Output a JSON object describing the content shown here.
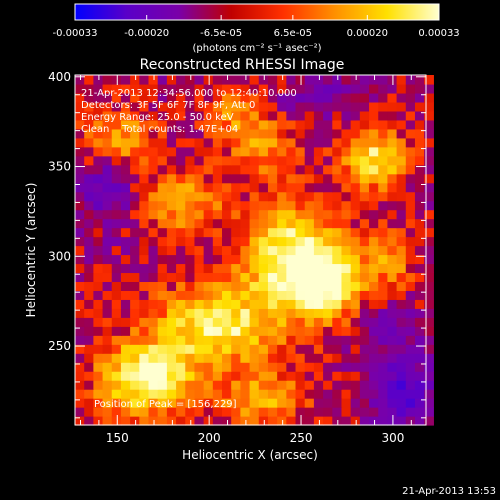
{
  "colorbar": {
    "ticks": [
      "-0.00033",
      "-0.00020",
      "-6.5e-05",
      "6.5e-05",
      "0.00020",
      "0.00033"
    ],
    "tick_values": [
      -0.00033,
      -0.0002,
      -6.5e-05,
      6.5e-05,
      0.0002,
      0.00033
    ],
    "unit_label": "(photons cm⁻² s⁻¹ asec⁻²)",
    "range": [
      -0.00033,
      0.00033
    ],
    "colors": [
      "#0000ff",
      "#5a00c8",
      "#7a00a8",
      "#c00000",
      "#ff3000",
      "#ff9000",
      "#ffe000",
      "#ffffd0"
    ]
  },
  "chart_data": {
    "type": "heatmap",
    "title": "Reconstructed RHESSI Image",
    "xlabel": "Heliocentric X (arcsec)",
    "ylabel": "Heliocentric Y (arcsec)",
    "xlim": [
      127,
      318
    ],
    "ylim": [
      206,
      401
    ],
    "xticks": [
      150,
      200,
      250,
      300
    ],
    "yticks": [
      250,
      300,
      350,
      400
    ],
    "info_lines": [
      "21-Apr-2013 12:34:56.000 to 12:40:10.000",
      "Detectors: 3F 5F 6F 7F 8F 9F, Att 0",
      "Energy Range: 25.0 - 50.0 keV",
      "Clean    Total counts: 1.47E+04"
    ],
    "peak_label": "Position of Peak = [156,229]",
    "peak": [
      156,
      229
    ],
    "grid": false,
    "sources": [
      {
        "x": 165,
        "y": 232,
        "sx": 18,
        "sy": 14,
        "amp": 1.0
      },
      {
        "x": 205,
        "y": 262,
        "sx": 24,
        "sy": 16,
        "amp": 0.85
      },
      {
        "x": 245,
        "y": 300,
        "sx": 18,
        "sy": 20,
        "amp": 0.95
      },
      {
        "x": 265,
        "y": 285,
        "sx": 14,
        "sy": 14,
        "amp": 0.8
      },
      {
        "x": 290,
        "y": 355,
        "sx": 12,
        "sy": 12,
        "amp": 0.8
      },
      {
        "x": 150,
        "y": 365,
        "sx": 14,
        "sy": 12,
        "amp": 0.6
      },
      {
        "x": 185,
        "y": 330,
        "sx": 16,
        "sy": 12,
        "amp": 0.55
      },
      {
        "x": 230,
        "y": 360,
        "sx": 14,
        "sy": 10,
        "amp": 0.45
      },
      {
        "x": 300,
        "y": 300,
        "sx": 10,
        "sy": 12,
        "amp": 0.45
      },
      {
        "x": 230,
        "y": 220,
        "sx": 16,
        "sy": 10,
        "amp": 0.55
      },
      {
        "x": 215,
        "y": 380,
        "sx": 12,
        "sy": 10,
        "amp": 0.4
      }
    ],
    "negatives": [
      {
        "x": 145,
        "y": 340,
        "sx": 10,
        "sy": 14,
        "amp": -0.5
      },
      {
        "x": 305,
        "y": 225,
        "sx": 12,
        "sy": 14,
        "amp": -0.6
      },
      {
        "x": 295,
        "y": 260,
        "sx": 12,
        "sy": 10,
        "amp": -0.25
      },
      {
        "x": 260,
        "y": 390,
        "sx": 14,
        "sy": 8,
        "amp": -0.25
      }
    ]
  },
  "timestamp": "21-Apr-2013 13:53"
}
